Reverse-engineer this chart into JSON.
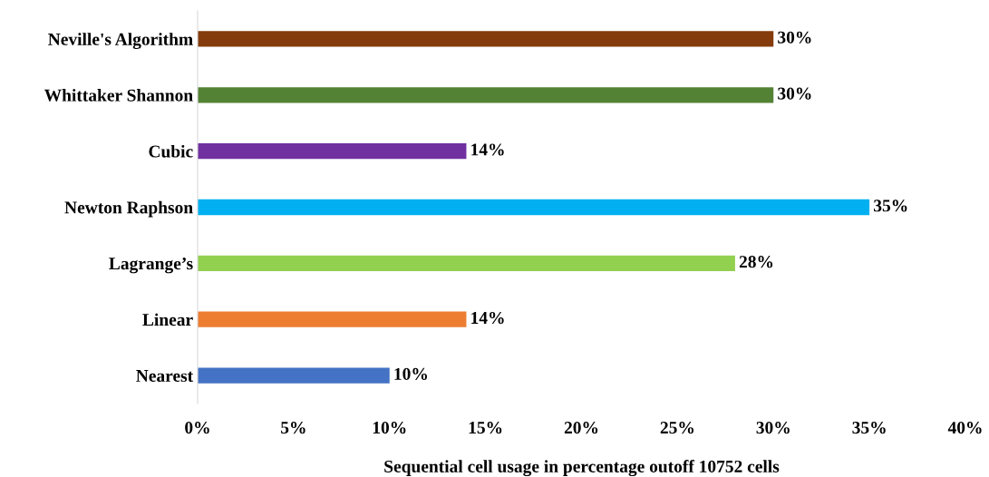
{
  "chart_data": {
    "type": "bar",
    "orientation": "horizontal",
    "xlabel": "Sequential cell usage in percentage outoff 10752 cells",
    "categories": [
      "Neville's Algorithm",
      "Whittaker Shannon",
      "Cubic",
      "Newton Raphson",
      "Lagrange’s",
      "Linear",
      "Nearest"
    ],
    "values": [
      30,
      30,
      14,
      35,
      28,
      14,
      10
    ],
    "colors": [
      "#843c0c",
      "#548235",
      "#7030a0",
      "#00b0f0",
      "#92d050",
      "#ed7d31",
      "#4472c4"
    ],
    "value_labels": [
      "30%",
      "30%",
      "14%",
      "35%",
      "28%",
      "14%",
      "10%"
    ],
    "xlim": [
      0,
      40
    ],
    "xticks": [
      {
        "value": 0,
        "label": "0%"
      },
      {
        "value": 5,
        "label": "5%"
      },
      {
        "value": 10,
        "label": "10%"
      },
      {
        "value": 15,
        "label": "15%"
      },
      {
        "value": 20,
        "label": "20%"
      },
      {
        "value": 25,
        "label": "25%"
      },
      {
        "value": 30,
        "label": "30%"
      },
      {
        "value": 35,
        "label": "35%"
      },
      {
        "value": 40,
        "label": "40%"
      }
    ],
    "grid": false
  }
}
